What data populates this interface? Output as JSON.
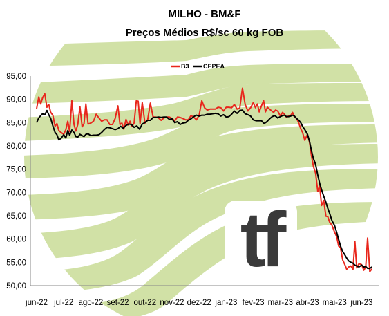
{
  "chart_data": {
    "type": "line",
    "title": "MILHO - BM&F",
    "subtitle": "Preços Médios R$/sc 60 kg FOB",
    "x_ticks": [
      "jun-22",
      "jul-22",
      "ago-22",
      "set-22",
      "out-22",
      "nov-22",
      "dez-22",
      "jan-23",
      "fev-23",
      "mar-23",
      "abr-23",
      "mai-23",
      "jun-23"
    ],
    "y_ticks": [
      "95,00",
      "90,00",
      "85,00",
      "80,00",
      "75,00",
      "70,00",
      "65,00",
      "60,00",
      "55,00",
      "50,00"
    ],
    "ylim": [
      50,
      95
    ],
    "grid": false,
    "legend_position": "top-center",
    "series": [
      {
        "name": "B3",
        "color": "#e8261c",
        "points": [
          [
            0.0,
            88.0
          ],
          [
            0.08,
            90.5
          ],
          [
            0.15,
            89.0
          ],
          [
            0.22,
            90.3
          ],
          [
            0.3,
            91.2
          ],
          [
            0.38,
            88.3
          ],
          [
            0.45,
            88.9
          ],
          [
            0.52,
            87.2
          ],
          [
            0.6,
            86.6
          ],
          [
            0.68,
            84.2
          ],
          [
            0.75,
            84.8
          ],
          [
            0.82,
            83.3
          ],
          [
            0.9,
            82.9
          ],
          [
            1.0,
            82.5
          ],
          [
            1.08,
            83.5
          ],
          [
            1.15,
            85.3
          ],
          [
            1.22,
            83.1
          ],
          [
            1.3,
            89.7
          ],
          [
            1.38,
            84.6
          ],
          [
            1.45,
            83.2
          ],
          [
            1.52,
            84.6
          ],
          [
            1.6,
            88.4
          ],
          [
            1.68,
            84.1
          ],
          [
            1.75,
            84.8
          ],
          [
            1.82,
            89.0
          ],
          [
            1.9,
            84.7
          ],
          [
            2.0,
            84.9
          ],
          [
            2.1,
            85.3
          ],
          [
            2.2,
            86.8
          ],
          [
            2.3,
            86.0
          ],
          [
            2.4,
            85.3
          ],
          [
            2.5,
            85.6
          ],
          [
            2.6,
            85.6
          ],
          [
            2.7,
            84.6
          ],
          [
            2.8,
            84.6
          ],
          [
            2.9,
            85.9
          ],
          [
            3.0,
            88.6
          ],
          [
            3.08,
            84.6
          ],
          [
            3.15,
            84.9
          ],
          [
            3.22,
            83.6
          ],
          [
            3.3,
            85.7
          ],
          [
            3.38,
            84.5
          ],
          [
            3.45,
            85.3
          ],
          [
            3.52,
            84.2
          ],
          [
            3.6,
            84.9
          ],
          [
            3.68,
            89.7
          ],
          [
            3.75,
            89.6
          ],
          [
            3.82,
            84.8
          ],
          [
            3.9,
            89.3
          ],
          [
            4.0,
            84.9
          ],
          [
            4.1,
            85.6
          ],
          [
            4.2,
            89.2
          ],
          [
            4.3,
            86.2
          ],
          [
            4.4,
            86.2
          ],
          [
            4.5,
            86.0
          ],
          [
            4.6,
            85.5
          ],
          [
            4.7,
            86.0
          ],
          [
            4.8,
            86.2
          ],
          [
            4.9,
            86.2
          ],
          [
            5.0,
            85.9
          ],
          [
            5.1,
            85.4
          ],
          [
            5.2,
            86.2
          ],
          [
            5.3,
            86.1
          ],
          [
            5.4,
            85.9
          ],
          [
            5.5,
            85.6
          ],
          [
            5.6,
            85.6
          ],
          [
            5.7,
            86.5
          ],
          [
            5.8,
            86.2
          ],
          [
            5.9,
            85.6
          ],
          [
            6.0,
            86.6
          ],
          [
            6.1,
            89.7
          ],
          [
            6.2,
            88.2
          ],
          [
            6.3,
            87.7
          ],
          [
            6.4,
            87.9
          ],
          [
            6.5,
            87.9
          ],
          [
            6.6,
            87.9
          ],
          [
            6.7,
            88.3
          ],
          [
            6.8,
            88.2
          ],
          [
            6.9,
            87.5
          ],
          [
            7.0,
            88.3
          ],
          [
            7.1,
            88.3
          ],
          [
            7.2,
            88.2
          ],
          [
            7.3,
            88.9
          ],
          [
            7.4,
            87.9
          ],
          [
            7.5,
            88.1
          ],
          [
            7.6,
            92.4
          ],
          [
            7.7,
            88.9
          ],
          [
            7.8,
            87.5
          ],
          [
            7.9,
            88.2
          ],
          [
            8.0,
            89.3
          ],
          [
            8.08,
            88.2
          ],
          [
            8.15,
            89.0
          ],
          [
            8.22,
            87.3
          ],
          [
            8.3,
            88.6
          ],
          [
            8.38,
            89.7
          ],
          [
            8.45,
            87.3
          ],
          [
            8.52,
            88.3
          ],
          [
            8.6,
            87.9
          ],
          [
            8.68,
            87.5
          ],
          [
            8.75,
            87.2
          ],
          [
            8.82,
            87.7
          ],
          [
            8.9,
            87.5
          ],
          [
            9.0,
            86.4
          ],
          [
            9.08,
            87.2
          ],
          [
            9.15,
            86.8
          ],
          [
            9.22,
            86.2
          ],
          [
            9.3,
            86.4
          ],
          [
            9.38,
            86.5
          ],
          [
            9.45,
            87.2
          ],
          [
            9.52,
            86.2
          ],
          [
            9.6,
            85.9
          ],
          [
            9.68,
            84.9
          ],
          [
            9.75,
            83.7
          ],
          [
            9.82,
            82.9
          ],
          [
            9.9,
            81.2
          ],
          [
            10.0,
            82.5
          ],
          [
            10.08,
            80.7
          ],
          [
            10.15,
            77.8
          ],
          [
            10.22,
            75.6
          ],
          [
            10.3,
            74.1
          ],
          [
            10.38,
            70.2
          ],
          [
            10.45,
            71.4
          ],
          [
            10.52,
            67.2
          ],
          [
            10.6,
            68.3
          ],
          [
            10.68,
            64.9
          ],
          [
            10.75,
            64.8
          ],
          [
            10.82,
            63.6
          ],
          [
            10.9,
            63.0
          ],
          [
            11.0,
            61.5
          ],
          [
            11.08,
            60.5
          ],
          [
            11.15,
            58.5
          ],
          [
            11.22,
            58.1
          ],
          [
            11.3,
            55.5
          ],
          [
            11.38,
            54.5
          ],
          [
            11.45,
            53.5
          ],
          [
            11.52,
            54.0
          ],
          [
            11.6,
            54.2
          ],
          [
            11.68,
            53.5
          ],
          [
            11.75,
            59.5
          ],
          [
            11.82,
            53.8
          ],
          [
            11.9,
            54.7
          ],
          [
            12.0,
            54.5
          ],
          [
            12.08,
            53.3
          ],
          [
            12.15,
            54.0
          ],
          [
            12.22,
            60.2
          ],
          [
            12.3,
            53.0
          ],
          [
            12.38,
            53.6
          ]
        ]
      },
      {
        "name": "CEPEA",
        "color": "#000000",
        "points": [
          [
            0.0,
            85.0
          ],
          [
            0.08,
            86.0
          ],
          [
            0.15,
            86.5
          ],
          [
            0.22,
            86.9
          ],
          [
            0.3,
            86.7
          ],
          [
            0.38,
            87.6
          ],
          [
            0.45,
            86.7
          ],
          [
            0.52,
            85.9
          ],
          [
            0.6,
            84.3
          ],
          [
            0.68,
            82.9
          ],
          [
            0.75,
            82.4
          ],
          [
            0.82,
            81.3
          ],
          [
            0.9,
            81.6
          ],
          [
            1.0,
            82.4
          ],
          [
            1.08,
            81.7
          ],
          [
            1.15,
            83.3
          ],
          [
            1.22,
            82.3
          ],
          [
            1.3,
            83.4
          ],
          [
            1.38,
            82.9
          ],
          [
            1.45,
            82.0
          ],
          [
            1.52,
            81.9
          ],
          [
            1.6,
            82.5
          ],
          [
            1.68,
            82.2
          ],
          [
            1.75,
            82.0
          ],
          [
            1.82,
            82.5
          ],
          [
            1.9,
            82.6
          ],
          [
            2.0,
            82.2
          ],
          [
            2.1,
            82.3
          ],
          [
            2.2,
            82.3
          ],
          [
            2.3,
            82.4
          ],
          [
            2.4,
            82.9
          ],
          [
            2.5,
            83.5
          ],
          [
            2.6,
            84.0
          ],
          [
            2.7,
            83.9
          ],
          [
            2.8,
            83.7
          ],
          [
            2.9,
            83.5
          ],
          [
            3.0,
            83.7
          ],
          [
            3.1,
            84.2
          ],
          [
            3.2,
            83.8
          ],
          [
            3.3,
            84.4
          ],
          [
            3.4,
            84.7
          ],
          [
            3.5,
            84.6
          ],
          [
            3.6,
            84.0
          ],
          [
            3.7,
            84.3
          ],
          [
            3.8,
            83.6
          ],
          [
            3.9,
            84.7
          ],
          [
            4.0,
            85.0
          ],
          [
            4.1,
            85.5
          ],
          [
            4.2,
            85.5
          ],
          [
            4.3,
            86.1
          ],
          [
            4.4,
            86.1
          ],
          [
            4.5,
            86.2
          ],
          [
            4.6,
            86.1
          ],
          [
            4.7,
            86.2
          ],
          [
            4.8,
            86.2
          ],
          [
            4.9,
            85.7
          ],
          [
            5.0,
            85.8
          ],
          [
            5.1,
            85.0
          ],
          [
            5.2,
            85.2
          ],
          [
            5.3,
            84.6
          ],
          [
            5.4,
            84.9
          ],
          [
            5.5,
            85.0
          ],
          [
            5.6,
            85.5
          ],
          [
            5.7,
            85.8
          ],
          [
            5.8,
            86.3
          ],
          [
            5.9,
            86.6
          ],
          [
            6.0,
            86.4
          ],
          [
            6.1,
            86.6
          ],
          [
            6.2,
            86.6
          ],
          [
            6.3,
            86.8
          ],
          [
            6.4,
            86.8
          ],
          [
            6.5,
            86.9
          ],
          [
            6.6,
            87.0
          ],
          [
            6.7,
            86.9
          ],
          [
            6.8,
            86.4
          ],
          [
            6.9,
            86.7
          ],
          [
            7.0,
            86.2
          ],
          [
            7.1,
            86.3
          ],
          [
            7.2,
            86.8
          ],
          [
            7.3,
            87.5
          ],
          [
            7.4,
            87.0
          ],
          [
            7.5,
            87.6
          ],
          [
            7.6,
            87.7
          ],
          [
            7.7,
            86.9
          ],
          [
            7.8,
            86.7
          ],
          [
            7.9,
            86.4
          ],
          [
            8.0,
            85.6
          ],
          [
            8.1,
            85.4
          ],
          [
            8.2,
            85.4
          ],
          [
            8.3,
            85.4
          ],
          [
            8.4,
            84.8
          ],
          [
            8.5,
            85.2
          ],
          [
            8.6,
            85.8
          ],
          [
            8.7,
            86.3
          ],
          [
            8.8,
            86.5
          ],
          [
            8.9,
            86.0
          ],
          [
            9.0,
            86.3
          ],
          [
            9.08,
            86.5
          ],
          [
            9.15,
            86.6
          ],
          [
            9.22,
            86.3
          ],
          [
            9.3,
            86.3
          ],
          [
            9.38,
            86.4
          ],
          [
            9.45,
            86.6
          ],
          [
            9.52,
            86.4
          ],
          [
            9.6,
            85.9
          ],
          [
            9.68,
            85.5
          ],
          [
            9.75,
            85.0
          ],
          [
            9.82,
            84.2
          ],
          [
            9.9,
            83.5
          ],
          [
            10.0,
            82.5
          ],
          [
            10.08,
            80.9
          ],
          [
            10.15,
            78.9
          ],
          [
            10.22,
            77.3
          ],
          [
            10.3,
            76.0
          ],
          [
            10.38,
            73.7
          ],
          [
            10.45,
            72.0
          ],
          [
            10.52,
            70.6
          ],
          [
            10.6,
            69.2
          ],
          [
            10.68,
            67.9
          ],
          [
            10.75,
            66.6
          ],
          [
            10.82,
            65.5
          ],
          [
            10.9,
            64.0
          ],
          [
            11.0,
            62.9
          ],
          [
            11.08,
            61.4
          ],
          [
            11.15,
            59.9
          ],
          [
            11.22,
            58.5
          ],
          [
            11.3,
            57.3
          ],
          [
            11.38,
            56.6
          ],
          [
            11.45,
            55.9
          ],
          [
            11.52,
            55.3
          ],
          [
            11.6,
            55.0
          ],
          [
            11.68,
            54.8
          ],
          [
            11.75,
            54.4
          ],
          [
            11.82,
            54.2
          ],
          [
            11.9,
            54.0
          ],
          [
            12.0,
            54.4
          ],
          [
            12.08,
            54.0
          ],
          [
            12.15,
            54.1
          ],
          [
            12.22,
            53.7
          ],
          [
            12.3,
            53.7
          ],
          [
            12.38,
            54.0
          ]
        ]
      }
    ]
  }
}
